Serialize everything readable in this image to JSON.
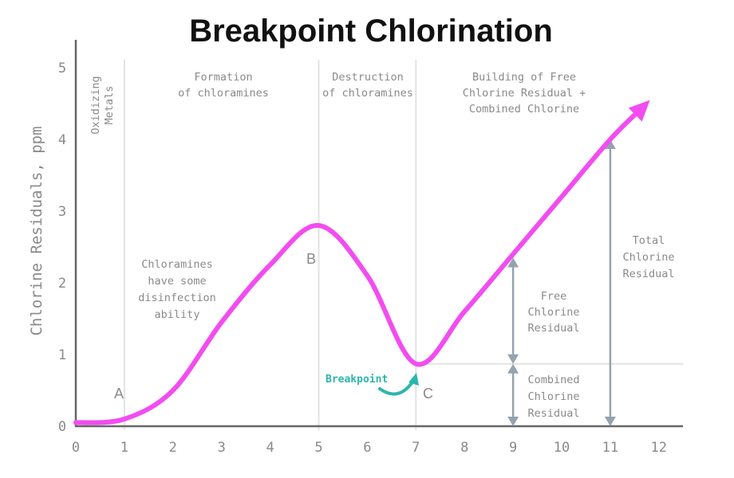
{
  "chart_data": {
    "type": "line",
    "title": "Breakpoint Chlorination",
    "xlabel": "",
    "ylabel": "Chlorine Residuals, ppm",
    "xlim": [
      0,
      12
    ],
    "ylim": [
      0,
      5
    ],
    "x_ticks": [
      "0",
      "1",
      "2",
      "3",
      "4",
      "5",
      "6",
      "7",
      "8",
      "9",
      "10",
      "11",
      "12"
    ],
    "y_ticks": [
      "0",
      "1",
      "2",
      "3",
      "4",
      "5"
    ],
    "series": [
      {
        "name": "Chlorine residual",
        "color": "#f24cf0",
        "points": [
          [
            0,
            0.05
          ],
          [
            1,
            0.1
          ],
          [
            2,
            0.5
          ],
          [
            3,
            1.45
          ],
          [
            4,
            2.25
          ],
          [
            5,
            2.8
          ],
          [
            6,
            2.1
          ],
          [
            7,
            0.87
          ],
          [
            8,
            1.6
          ],
          [
            9,
            2.4
          ],
          [
            10,
            3.2
          ],
          [
            11,
            4.0
          ],
          [
            11.7,
            4.47
          ]
        ]
      }
    ],
    "phase_dividers": [
      1,
      5,
      7
    ],
    "phase_labels": [
      {
        "lines": [
          "Oxidizing",
          "Metals"
        ]
      },
      {
        "lines": [
          "Formation",
          "of chloramines"
        ]
      },
      {
        "lines": [
          "Destruction",
          "of chloramines"
        ]
      },
      {
        "lines": [
          "Building of Free",
          "Chlorine Residual +",
          "Combined Chlorine"
        ]
      }
    ],
    "point_labels": [
      "A",
      "B",
      "C"
    ],
    "breakpoint_label": "Breakpoint",
    "breakpoint_level": 0.87,
    "notes": {
      "chloramines": [
        "Chloramines",
        "have some",
        "disinfection",
        "ability"
      ],
      "free": [
        "Free",
        "Chlorine",
        "Residual"
      ],
      "combined": [
        "Combined",
        "Chlorine",
        "Residual"
      ],
      "total": [
        "Total",
        "Chlorine",
        "Residual"
      ]
    },
    "colors": {
      "curve": "#f24cf0",
      "breakpoint": "#2bb5ad",
      "arrows": "#94a3ad",
      "grid": "#e3e3e3",
      "axis": "#666666"
    }
  }
}
